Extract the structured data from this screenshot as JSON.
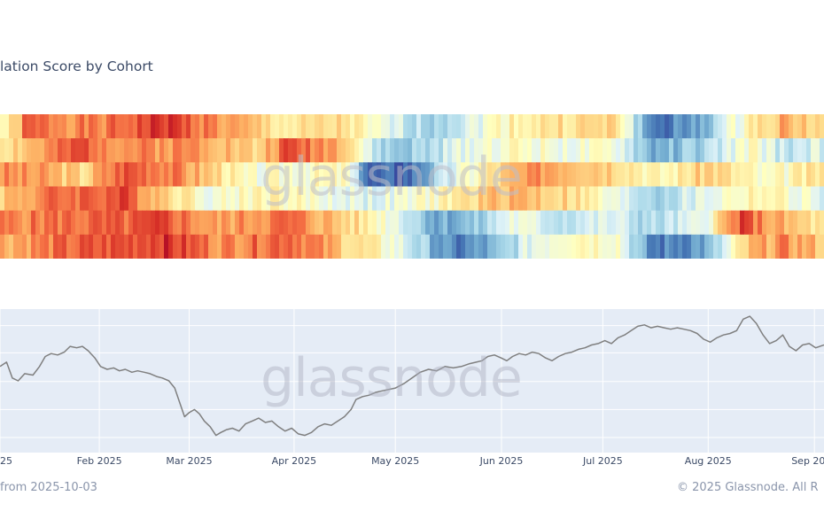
{
  "title": "lation Score by Cohort",
  "watermark": "glassnode",
  "footer": {
    "left": "from 2025-10-03",
    "right": "© 2025 Glassnode. All R"
  },
  "chart_data": [
    {
      "type": "heatmap",
      "rows": 6,
      "colorscale": [
        "#a50026",
        "#d73027",
        "#f46d43",
        "#fdae61",
        "#fee090",
        "#ffffbf",
        "#e0f3f8",
        "#abd9e9",
        "#74add1",
        "#4575b4",
        "#313695"
      ],
      "segments": [
        [
          [
            0.0,
            0.5
          ],
          [
            0.02,
            0.6
          ],
          [
            0.03,
            0.8
          ],
          [
            0.12,
            0.75
          ],
          [
            0.2,
            0.9
          ],
          [
            0.28,
            0.7
          ],
          [
            0.35,
            0.55
          ],
          [
            0.42,
            0.6
          ],
          [
            0.45,
            0.45
          ],
          [
            0.52,
            0.3
          ],
          [
            0.57,
            0.4
          ],
          [
            0.62,
            0.55
          ],
          [
            0.7,
            0.6
          ],
          [
            0.75,
            0.6
          ],
          [
            0.79,
            0.1
          ],
          [
            0.84,
            0.15
          ],
          [
            0.91,
            0.55
          ],
          [
            0.95,
            0.7
          ],
          [
            1.0,
            0.6
          ]
        ],
        [
          [
            0.0,
            0.6
          ],
          [
            0.05,
            0.7
          ],
          [
            0.1,
            0.85
          ],
          [
            0.15,
            0.75
          ],
          [
            0.25,
            0.75
          ],
          [
            0.31,
            0.6
          ],
          [
            0.35,
            0.85
          ],
          [
            0.42,
            0.7
          ],
          [
            0.45,
            0.35
          ],
          [
            0.48,
            0.25
          ],
          [
            0.52,
            0.3
          ],
          [
            0.57,
            0.45
          ],
          [
            0.62,
            0.5
          ],
          [
            0.7,
            0.45
          ],
          [
            0.75,
            0.45
          ],
          [
            0.79,
            0.2
          ],
          [
            0.86,
            0.3
          ],
          [
            0.91,
            0.5
          ],
          [
            0.95,
            0.35
          ],
          [
            1.0,
            0.4
          ]
        ],
        [
          [
            0.0,
            0.75
          ],
          [
            0.06,
            0.7
          ],
          [
            0.1,
            0.6
          ],
          [
            0.15,
            0.85
          ],
          [
            0.2,
            0.8
          ],
          [
            0.27,
            0.6
          ],
          [
            0.3,
            0.45
          ],
          [
            0.36,
            0.5
          ],
          [
            0.42,
            0.5
          ],
          [
            0.45,
            0.05
          ],
          [
            0.5,
            0.1
          ],
          [
            0.55,
            0.4
          ],
          [
            0.6,
            0.6
          ],
          [
            0.66,
            0.75
          ],
          [
            0.75,
            0.65
          ],
          [
            0.8,
            0.5
          ],
          [
            0.86,
            0.65
          ],
          [
            0.93,
            0.45
          ],
          [
            1.0,
            0.6
          ]
        ],
        [
          [
            0.0,
            0.65
          ],
          [
            0.07,
            0.8
          ],
          [
            0.15,
            0.85
          ],
          [
            0.2,
            0.65
          ],
          [
            0.26,
            0.45
          ],
          [
            0.32,
            0.55
          ],
          [
            0.4,
            0.45
          ],
          [
            0.45,
            0.4
          ],
          [
            0.5,
            0.45
          ],
          [
            0.55,
            0.55
          ],
          [
            0.62,
            0.7
          ],
          [
            0.7,
            0.6
          ],
          [
            0.75,
            0.4
          ],
          [
            0.8,
            0.3
          ],
          [
            0.87,
            0.45
          ],
          [
            0.92,
            0.55
          ],
          [
            1.0,
            0.4
          ]
        ],
        [
          [
            0.0,
            0.75
          ],
          [
            0.08,
            0.8
          ],
          [
            0.15,
            0.8
          ],
          [
            0.2,
            0.85
          ],
          [
            0.26,
            0.7
          ],
          [
            0.35,
            0.8
          ],
          [
            0.43,
            0.6
          ],
          [
            0.48,
            0.45
          ],
          [
            0.53,
            0.2
          ],
          [
            0.58,
            0.25
          ],
          [
            0.62,
            0.45
          ],
          [
            0.68,
            0.35
          ],
          [
            0.74,
            0.4
          ],
          [
            0.79,
            0.3
          ],
          [
            0.85,
            0.4
          ],
          [
            0.9,
            0.85
          ],
          [
            0.94,
            0.7
          ],
          [
            1.0,
            0.55
          ]
        ],
        [
          [
            0.0,
            0.7
          ],
          [
            0.08,
            0.8
          ],
          [
            0.15,
            0.85
          ],
          [
            0.2,
            0.9
          ],
          [
            0.27,
            0.75
          ],
          [
            0.35,
            0.85
          ],
          [
            0.43,
            0.6
          ],
          [
            0.48,
            0.45
          ],
          [
            0.55,
            0.1
          ],
          [
            0.6,
            0.2
          ],
          [
            0.65,
            0.45
          ],
          [
            0.7,
            0.55
          ],
          [
            0.75,
            0.5
          ],
          [
            0.79,
            0.1
          ],
          [
            0.86,
            0.2
          ],
          [
            0.91,
            0.65
          ],
          [
            0.95,
            0.75
          ],
          [
            1.0,
            0.65
          ]
        ]
      ]
    },
    {
      "type": "line",
      "x_tick_labels": [
        {
          "label": "25",
          "pos": 0.0
        },
        {
          "label": "Feb 2025",
          "pos": 0.1205
        },
        {
          "label": "Mar 2025",
          "pos": 0.2296
        },
        {
          "label": "Apr 2025",
          "pos": 0.3569
        },
        {
          "label": "May 2025",
          "pos": 0.4798
        },
        {
          "label": "Jun 2025",
          "pos": 0.6086
        },
        {
          "label": "Jul 2025",
          "pos": 0.7316
        },
        {
          "label": "Aug 2025",
          "pos": 0.8595
        },
        {
          "label": "Sep 20",
          "pos": 0.9884
        }
      ],
      "series": [
        {
          "line_color": "#7f7f7f",
          "values": [
            [
              0.0,
              0.4
            ],
            [
              0.008,
              0.37
            ],
            [
              0.015,
              0.48
            ],
            [
              0.022,
              0.5
            ],
            [
              0.03,
              0.45
            ],
            [
              0.04,
              0.46
            ],
            [
              0.048,
              0.4
            ],
            [
              0.055,
              0.33
            ],
            [
              0.062,
              0.31
            ],
            [
              0.07,
              0.32
            ],
            [
              0.078,
              0.3
            ],
            [
              0.085,
              0.26
            ],
            [
              0.093,
              0.27
            ],
            [
              0.1,
              0.26
            ],
            [
              0.107,
              0.29
            ],
            [
              0.115,
              0.34
            ],
            [
              0.122,
              0.4
            ],
            [
              0.13,
              0.42
            ],
            [
              0.138,
              0.41
            ],
            [
              0.145,
              0.43
            ],
            [
              0.152,
              0.42
            ],
            [
              0.16,
              0.44
            ],
            [
              0.167,
              0.43
            ],
            [
              0.175,
              0.44
            ],
            [
              0.182,
              0.45
            ],
            [
              0.19,
              0.47
            ],
            [
              0.197,
              0.48
            ],
            [
              0.205,
              0.5
            ],
            [
              0.212,
              0.55
            ],
            [
              0.218,
              0.65
            ],
            [
              0.224,
              0.75
            ],
            [
              0.23,
              0.72
            ],
            [
              0.236,
              0.7
            ],
            [
              0.242,
              0.73
            ],
            [
              0.248,
              0.78
            ],
            [
              0.255,
              0.82
            ],
            [
              0.262,
              0.88
            ],
            [
              0.268,
              0.86
            ],
            [
              0.275,
              0.84
            ],
            [
              0.282,
              0.83
            ],
            [
              0.29,
              0.85
            ],
            [
              0.298,
              0.8
            ],
            [
              0.306,
              0.78
            ],
            [
              0.314,
              0.76
            ],
            [
              0.322,
              0.79
            ],
            [
              0.33,
              0.78
            ],
            [
              0.338,
              0.82
            ],
            [
              0.346,
              0.85
            ],
            [
              0.354,
              0.83
            ],
            [
              0.362,
              0.87
            ],
            [
              0.37,
              0.88
            ],
            [
              0.378,
              0.86
            ],
            [
              0.386,
              0.82
            ],
            [
              0.394,
              0.8
            ],
            [
              0.402,
              0.81
            ],
            [
              0.41,
              0.78
            ],
            [
              0.418,
              0.75
            ],
            [
              0.426,
              0.7
            ],
            [
              0.432,
              0.63
            ],
            [
              0.44,
              0.61
            ],
            [
              0.448,
              0.6
            ],
            [
              0.456,
              0.58
            ],
            [
              0.464,
              0.57
            ],
            [
              0.472,
              0.56
            ],
            [
              0.48,
              0.55
            ],
            [
              0.49,
              0.52
            ],
            [
              0.5,
              0.48
            ],
            [
              0.51,
              0.44
            ],
            [
              0.52,
              0.42
            ],
            [
              0.53,
              0.43
            ],
            [
              0.54,
              0.4
            ],
            [
              0.55,
              0.41
            ],
            [
              0.56,
              0.4
            ],
            [
              0.57,
              0.38
            ],
            [
              0.578,
              0.37
            ],
            [
              0.585,
              0.36
            ],
            [
              0.592,
              0.33
            ],
            [
              0.6,
              0.32
            ],
            [
              0.608,
              0.34
            ],
            [
              0.615,
              0.36
            ],
            [
              0.622,
              0.33
            ],
            [
              0.63,
              0.31
            ],
            [
              0.638,
              0.32
            ],
            [
              0.646,
              0.3
            ],
            [
              0.654,
              0.31
            ],
            [
              0.662,
              0.34
            ],
            [
              0.67,
              0.36
            ],
            [
              0.678,
              0.33
            ],
            [
              0.686,
              0.31
            ],
            [
              0.694,
              0.3
            ],
            [
              0.702,
              0.28
            ],
            [
              0.71,
              0.27
            ],
            [
              0.718,
              0.25
            ],
            [
              0.726,
              0.24
            ],
            [
              0.734,
              0.22
            ],
            [
              0.742,
              0.24
            ],
            [
              0.75,
              0.2
            ],
            [
              0.758,
              0.18
            ],
            [
              0.766,
              0.15
            ],
            [
              0.774,
              0.12
            ],
            [
              0.782,
              0.11
            ],
            [
              0.79,
              0.13
            ],
            [
              0.798,
              0.12
            ],
            [
              0.806,
              0.13
            ],
            [
              0.814,
              0.14
            ],
            [
              0.822,
              0.13
            ],
            [
              0.83,
              0.14
            ],
            [
              0.838,
              0.15
            ],
            [
              0.846,
              0.17
            ],
            [
              0.854,
              0.21
            ],
            [
              0.862,
              0.23
            ],
            [
              0.87,
              0.2
            ],
            [
              0.878,
              0.18
            ],
            [
              0.886,
              0.17
            ],
            [
              0.894,
              0.15
            ],
            [
              0.902,
              0.07
            ],
            [
              0.91,
              0.05
            ],
            [
              0.918,
              0.1
            ],
            [
              0.926,
              0.18
            ],
            [
              0.934,
              0.24
            ],
            [
              0.942,
              0.22
            ],
            [
              0.95,
              0.18
            ],
            [
              0.958,
              0.26
            ],
            [
              0.966,
              0.29
            ],
            [
              0.974,
              0.25
            ],
            [
              0.982,
              0.24
            ],
            [
              0.99,
              0.27
            ],
            [
              1.0,
              0.25
            ]
          ]
        }
      ]
    }
  ]
}
